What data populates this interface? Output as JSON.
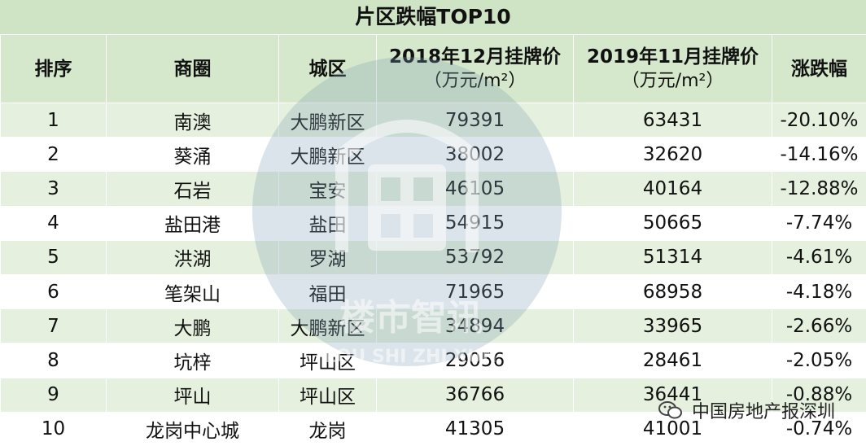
{
  "title": "片区跌幅TOP10",
  "columns": {
    "rank": "排序",
    "area": "商圈",
    "district": "城区",
    "price_2018": "2018年12月挂牌价",
    "price_2018_unit": "（万元/m²）",
    "price_2019": "2019年11月挂牌价",
    "price_2019_unit": "（万元/m²）",
    "change": "涨跌幅"
  },
  "rows": [
    {
      "rank": "1",
      "area": "南澳",
      "district": "大鹏新区",
      "price_2018": "79391",
      "price_2019": "63431",
      "change": "-20.10%"
    },
    {
      "rank": "2",
      "area": "葵涌",
      "district": "大鹏新区",
      "price_2018": "38002",
      "price_2019": "32620",
      "change": "-14.16%"
    },
    {
      "rank": "3",
      "area": "石岩",
      "district": "宝安",
      "price_2018": "46105",
      "price_2019": "40164",
      "change": "-12.88%"
    },
    {
      "rank": "4",
      "area": "盐田港",
      "district": "盐田",
      "price_2018": "54915",
      "price_2019": "50665",
      "change": "-7.74%"
    },
    {
      "rank": "5",
      "area": "洪湖",
      "district": "罗湖",
      "price_2018": "53792",
      "price_2019": "51314",
      "change": "-4.61%"
    },
    {
      "rank": "6",
      "area": "笔架山",
      "district": "福田",
      "price_2018": "71965",
      "price_2019": "68958",
      "change": "-4.18%"
    },
    {
      "rank": "7",
      "area": "大鹏",
      "district": "大鹏新区",
      "price_2018": "34894",
      "price_2019": "33965",
      "change": "-2.66%"
    },
    {
      "rank": "8",
      "area": "坑梓",
      "district": "坪山区",
      "price_2018": "29056",
      "price_2019": "28461",
      "change": "-2.05%"
    },
    {
      "rank": "9",
      "area": "坪山",
      "district": "坪山区",
      "price_2018": "36766",
      "price_2019": "36441",
      "change": "-0.88%"
    },
    {
      "rank": "10",
      "area": "龙岗中心城",
      "district": "龙岗",
      "price_2018": "41305",
      "price_2019": "41001",
      "change": "-0.74%"
    }
  ],
  "watermark": {
    "cn": "楼市智讯",
    "en": "LOU SHI ZHI XUN"
  },
  "source": "中国房地产报深圳",
  "icons": {
    "watermark_logo": "house-logo-icon",
    "source_icon": "wechat-icon"
  },
  "colors": {
    "header_bg": "#d5e8cb",
    "stripe_bg": "#e5f0de",
    "watermark": "#9fb8c6"
  }
}
